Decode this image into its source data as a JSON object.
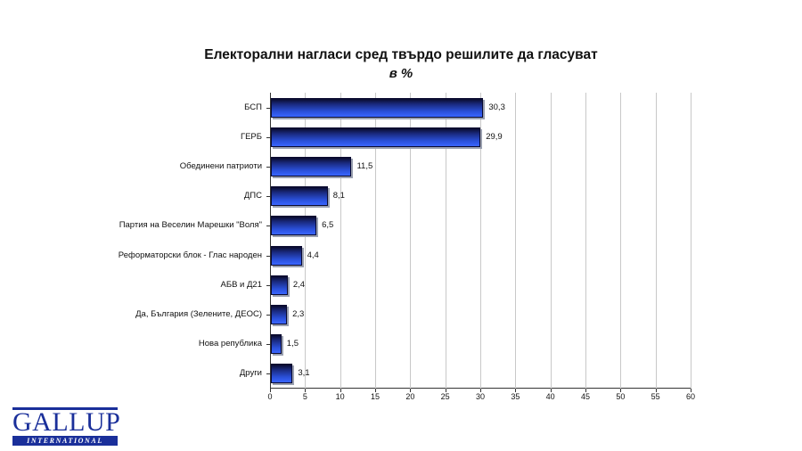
{
  "chart_data": {
    "type": "bar",
    "orientation": "horizontal",
    "title": "Електорални нагласи сред твърдо решилите да гласуват",
    "subtitle": "в %",
    "xlabel": "",
    "ylabel": "",
    "xlim": [
      0,
      60
    ],
    "xticks": [
      "0",
      "5",
      "10",
      "15",
      "20",
      "25",
      "30",
      "35",
      "40",
      "45",
      "50",
      "55",
      "60"
    ],
    "grid": true,
    "legend": null,
    "categories": [
      "БСП",
      "ГЕРБ",
      "Обединени патриоти",
      "ДПС",
      "Партия на Веселин Марешки \"Воля\"",
      "Реформаторски блок - Глас народен",
      "АБВ и Д21",
      "Да, България (Зелените, ДЕОС)",
      "Нова република",
      "Други"
    ],
    "values": [
      30.3,
      29.9,
      11.5,
      8.1,
      6.5,
      4.4,
      2.4,
      2.3,
      1.5,
      3.1
    ],
    "value_labels": [
      "30,3",
      "29,9",
      "11,5",
      "8,1",
      "6,5",
      "4,4",
      "2,4",
      "2,3",
      "1,5",
      "3,1"
    ],
    "bar_color": "#2a4fd8"
  },
  "logo": {
    "name": "GALLUP",
    "sub": "INTERNATIONAL"
  }
}
